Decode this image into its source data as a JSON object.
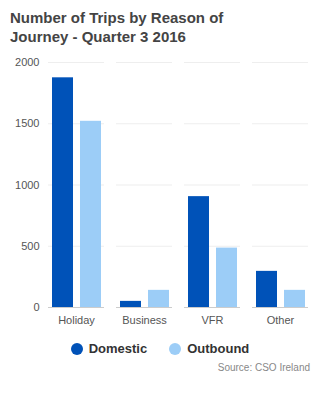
{
  "chart_data": {
    "type": "bar",
    "title": "Number of Trips by Reason of Journey - Quarter 3 2016",
    "caption": "Source: CSO Ireland",
    "categories": [
      "Holiday",
      "Business",
      "VFR",
      "Other"
    ],
    "series": [
      {
        "name": "Domestic",
        "color": "#0052b8",
        "values": [
          1875,
          50,
          905,
          295
        ]
      },
      {
        "name": "Outbound",
        "color": "#9ccdf7",
        "values": [
          1520,
          140,
          485,
          140
        ]
      }
    ],
    "ylim": [
      0,
      2000
    ],
    "yticks": [
      0,
      500,
      1000,
      1500,
      2000
    ],
    "grid": true,
    "legend": "bottom"
  }
}
